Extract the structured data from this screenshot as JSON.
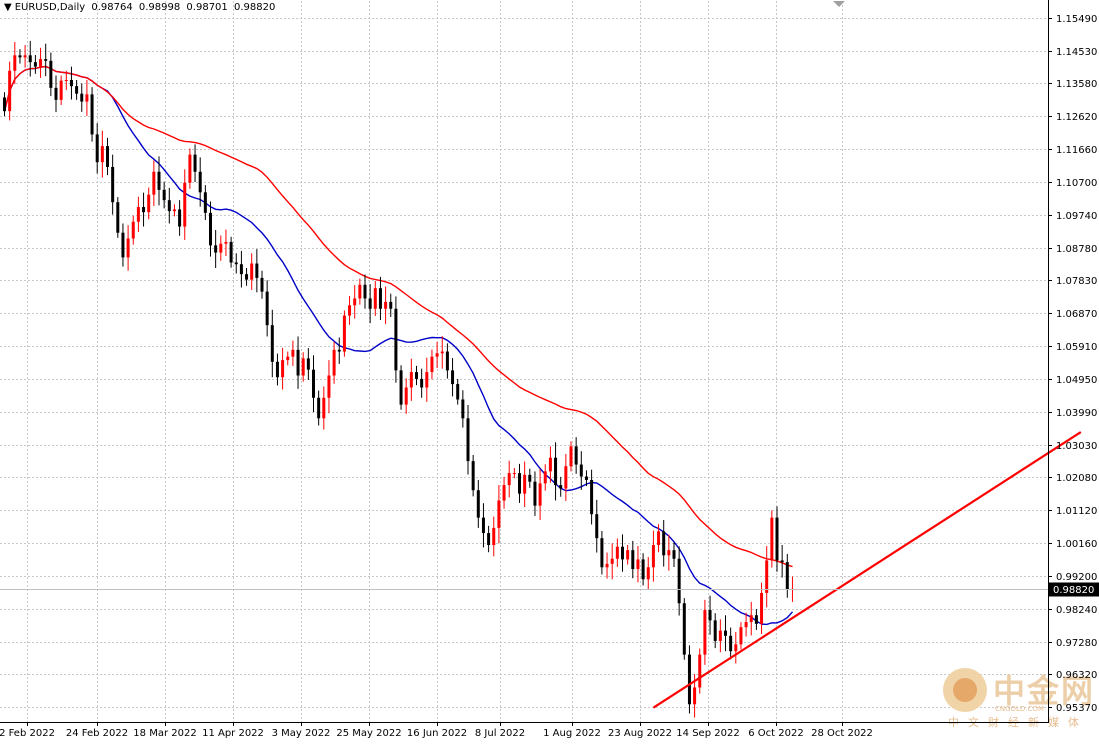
{
  "header": {
    "symbol": "EURUSD,Daily",
    "open": "0.98764",
    "high": "0.98998",
    "low": "0.98701",
    "close": "0.98820"
  },
  "watermark": {
    "brand": "中金网",
    "domain": "CNGOLD.COM",
    "slogan": "中文财经新媒体"
  },
  "chart_data": {
    "type": "candlestick",
    "title": "EURUSD,Daily",
    "price_axis_ticks": [
      "1.15490",
      "1.14530",
      "1.13580",
      "1.12620",
      "1.11660",
      "1.10700",
      "1.09740",
      "1.08780",
      "1.07830",
      "1.06870",
      "1.05910",
      "1.04950",
      "1.03990",
      "1.03030",
      "1.02080",
      "1.01120",
      "1.00160",
      "0.99200",
      "0.98240",
      "0.97280",
      "0.96320",
      "0.95370"
    ],
    "current_price_label": "0.98820",
    "ylim": [
      0.951,
      1.158
    ],
    "time_axis_labels": [
      "2 Feb 2022",
      "24 Feb 2022",
      "18 Mar 2022",
      "11 Apr 2022",
      "3 May 2022",
      "25 May 2022",
      "16 Jun 2022",
      "8 Jul 2022",
      "1 Aug 2022",
      "23 Aug 2022",
      "14 Sep 2022",
      "6 Oct 2022",
      "28 Oct 2022"
    ],
    "grid": true,
    "colors": {
      "bull": "#ff0000",
      "bear": "#000000",
      "ma_fast": "#0000c8",
      "ma_slow": "#ff0000",
      "trendline": "#ff0000",
      "grid": "#c8c8c8"
    },
    "closes": [
      1.1277,
      1.1395,
      1.144,
      1.1434,
      1.144,
      1.142,
      1.1407,
      1.1429,
      1.1424,
      1.1345,
      1.131,
      1.1366,
      1.1368,
      1.135,
      1.1328,
      1.1305,
      1.1326,
      1.1209,
      1.1128,
      1.1175,
      1.1114,
      1.1011,
      1.0922,
      1.085,
      1.0905,
      1.0954,
      1.0997,
      1.0982,
      1.1033,
      1.11,
      1.1047,
      1.1017,
      1.0985,
      1.099,
      1.094,
      1.1068,
      1.115,
      1.11,
      1.104,
      1.098,
      1.0885,
      1.0864,
      1.089,
      1.0895,
      1.0835,
      1.083,
      1.0801,
      1.0785,
      1.0832,
      1.079,
      1.075,
      1.0652,
      1.0545,
      1.05,
      1.055,
      1.056,
      1.058,
      1.0505,
      1.0555,
      1.0522,
      1.044,
      1.038,
      1.044,
      1.0505,
      1.058,
      1.0575,
      1.068,
      1.071,
      1.073,
      1.077,
      1.073,
      1.07,
      1.076,
      1.07,
      1.072,
      1.07,
      1.052,
      1.042,
      1.047,
      1.0515,
      1.0495,
      1.047,
      1.0515,
      1.056,
      1.057,
      1.0575,
      1.052,
      1.048,
      1.0435,
      1.038,
      1.0255,
      1.017,
      1.009,
      1.0045,
      1.001,
      1.006,
      1.014,
      1.0185,
      1.022,
      1.022,
      1.016,
      1.0215,
      1.0195,
      1.0125,
      1.019,
      1.0225,
      1.0265,
      1.0185,
      1.0175,
      1.024,
      1.0298,
      1.0245,
      1.021,
      1.02,
      1.01,
      1.003,
      0.9945,
      0.9955,
      0.997,
      1.0005,
      0.9968,
      0.9995,
      0.994,
      0.9968,
      0.991,
      0.9945,
      1.001,
      1.005,
      0.998,
      0.9995,
      0.997,
      0.984,
      0.969,
      0.9545,
      0.9594,
      0.969,
      0.982,
      0.979,
      0.973,
      0.976,
      0.9745,
      0.97,
      0.972,
      0.977,
      0.9785,
      0.9805,
      0.978,
      0.987,
      0.9965,
      1.009,
      0.9965,
      0.996,
      0.988,
      0.9882
    ],
    "ma_fast_last": 0.9935,
    "ma_slow_last": 1.005,
    "trendline": {
      "from": {
        "bar": 126,
        "price": 0.9535
      },
      "to": {
        "bar": 209,
        "price": 1.034
      }
    },
    "current_price_line": 0.9882
  }
}
